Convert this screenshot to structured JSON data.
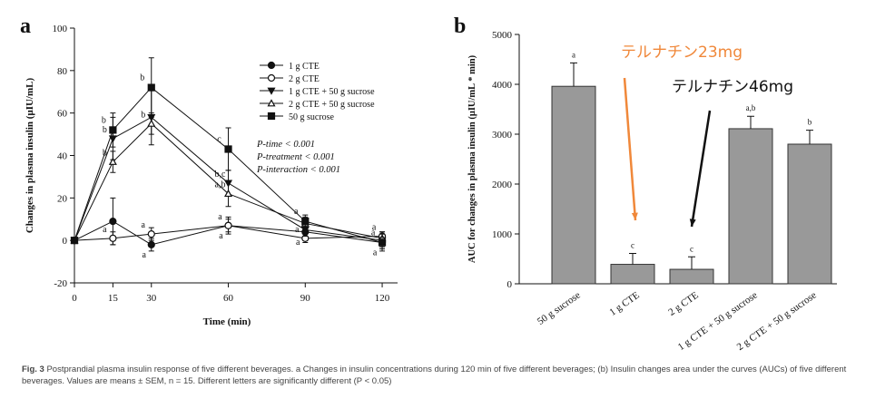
{
  "chart_data": [
    {
      "type": "line",
      "panel": "a",
      "xlabel": "Time (min)",
      "ylabel": "Changes in plasma insulin (μIU/mL)",
      "x": [
        0,
        15,
        30,
        60,
        90,
        120
      ],
      "xlim": [
        0,
        126
      ],
      "xticks": [
        0,
        15,
        30,
        60,
        90,
        120
      ],
      "ylim": [
        -20,
        100
      ],
      "yticks": [
        -20,
        0,
        20,
        40,
        60,
        80,
        100
      ],
      "series": [
        {
          "name": "1 g CTE",
          "color": "#111111",
          "marker": "circle",
          "filled": true,
          "values": [
            0,
            9,
            -2,
            7,
            4,
            -1
          ],
          "errors": [
            0,
            11,
            3,
            4,
            3,
            3
          ],
          "letters": [
            null,
            null,
            "a",
            "a",
            "a",
            "a"
          ]
        },
        {
          "name": "2 g CTE",
          "color": "#111111",
          "marker": "circle",
          "filled": false,
          "values": [
            0,
            1,
            3,
            7,
            1,
            2
          ],
          "errors": [
            0,
            3,
            3,
            3,
            2,
            2
          ],
          "letters": [
            null,
            "a",
            "a",
            "a",
            "a",
            "a"
          ]
        },
        {
          "name": "1 g CTE + 50 g sucrose",
          "color": "#111111",
          "marker": "triangle-down",
          "filled": true,
          "values": [
            0,
            48,
            58,
            27,
            5,
            0
          ],
          "errors": [
            0,
            10,
            13,
            6,
            3,
            3
          ],
          "letters": [
            null,
            "b",
            null,
            "b,c",
            null,
            null
          ]
        },
        {
          "name": "2 g CTE + 50 g sucrose",
          "color": "#111111",
          "marker": "triangle-up",
          "filled": false,
          "values": [
            0,
            37,
            55,
            22,
            8,
            1
          ],
          "errors": [
            0,
            5,
            5,
            6,
            3,
            3
          ],
          "letters": [
            null,
            "b",
            "b",
            "a,b",
            null,
            null
          ]
        },
        {
          "name": "50 g sucrose",
          "color": "#111111",
          "marker": "square",
          "filled": true,
          "values": [
            0,
            52,
            72,
            43,
            9,
            -1
          ],
          "errors": [
            0,
            8,
            14,
            10,
            3,
            4
          ],
          "letters": [
            null,
            "b",
            "b",
            "c",
            "a",
            "a"
          ]
        }
      ],
      "annotations": [
        "P-time < 0.001",
        "P-treatment < 0.001",
        "P-interaction < 0.001"
      ]
    },
    {
      "type": "bar",
      "panel": "b",
      "ylabel": "AUC for changes in plasma insulin (μIU/mL * min)",
      "color": "#999999",
      "categories": [
        "50 g sucrose",
        "1 g CTE",
        "2 g CTE",
        "1 g CTE + 50 g sucrose",
        "2 g CTE + 50 g sucrose"
      ],
      "values": [
        3960,
        390,
        290,
        3110,
        2800
      ],
      "errors": [
        470,
        220,
        250,
        250,
        280
      ],
      "letters": [
        "a",
        "c",
        "c",
        "a,b",
        "b"
      ],
      "ylim": [
        0,
        5000
      ],
      "yticks": [
        0,
        1000,
        2000,
        3000,
        4000,
        5000
      ],
      "annotations": [
        {
          "text": "テルナチン23mg",
          "color": "#f0883a"
        },
        {
          "text": "テルナチン46mg",
          "color": "#111111"
        }
      ]
    }
  ],
  "caption": {
    "label": "Fig. 3",
    "text": "Postprandial plasma insulin response of five different beverages. a Changes in insulin concentrations during 120 min of five different beverages; (b) Insulin changes area under the curves (AUCs) of five different beverages. Values are means ± SEM, n = 15. Different letters are significantly different (P < 0.05)"
  }
}
